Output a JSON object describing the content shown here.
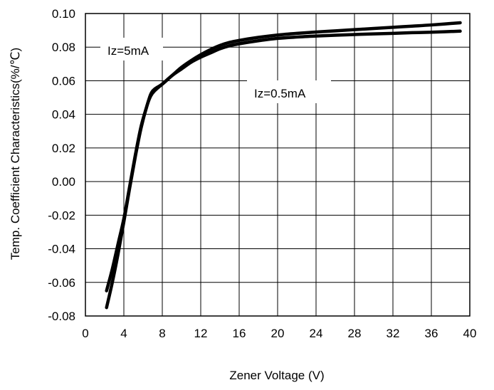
{
  "chart_data": {
    "type": "line",
    "title": "",
    "xlabel": "Zener Voltage (V)",
    "ylabel": "Temp. Coefficient Characteristics(%/℃)",
    "xlim": [
      0,
      40
    ],
    "ylim": [
      -0.08,
      0.1
    ],
    "xticks": [
      0,
      4,
      8,
      12,
      16,
      20,
      24,
      28,
      32,
      36,
      40
    ],
    "xtick_labels": [
      "0",
      "4",
      "8",
      "12",
      "16",
      "20",
      "24",
      "28",
      "32",
      "36",
      "40"
    ],
    "yticks": [
      0.1,
      0.08,
      0.06,
      0.04,
      0.02,
      0.0,
      -0.02,
      -0.04,
      -0.06,
      -0.08
    ],
    "ytick_labels": [
      "0.10",
      "0.08",
      "0.06",
      "0.04",
      "0.02",
      "0.00",
      "-0.02",
      "-0.04",
      "-0.06",
      "-0.08"
    ],
    "grid": true,
    "series": [
      {
        "name": "Iz=5mA",
        "x": [
          2.2,
          2.8,
          3.4,
          4.0,
          4.6,
          5.2,
          5.8,
          6.4,
          6.8,
          7.2,
          8.0,
          9.0,
          10.0,
          11.0,
          12.0,
          13.0,
          14.0,
          15.0,
          16.0,
          18.0,
          20.0,
          22.0,
          24.0,
          26.0,
          28.0,
          30.0,
          32.0,
          34.0,
          36.0,
          39.0
        ],
        "y": [
          -0.065,
          -0.052,
          -0.037,
          -0.022,
          -0.003,
          0.016,
          0.033,
          0.045,
          0.052,
          0.055,
          0.058,
          0.063,
          0.068,
          0.072,
          0.0755,
          0.0785,
          0.081,
          0.0828,
          0.084,
          0.0858,
          0.0872,
          0.0882,
          0.089,
          0.0897,
          0.0904,
          0.0911,
          0.0918,
          0.0925,
          0.0932,
          0.0945
        ]
      },
      {
        "name": "Iz=0.5mA",
        "x": [
          2.2,
          2.8,
          3.4,
          4.0,
          4.6,
          5.2,
          5.8,
          6.4,
          6.8,
          7.2,
          8.0,
          9.0,
          10.0,
          11.0,
          12.0,
          13.0,
          14.0,
          15.0,
          16.0,
          18.0,
          20.0,
          22.0,
          24.0,
          26.0,
          28.0,
          30.0,
          32.0,
          34.0,
          36.0,
          39.0
        ],
        "y": [
          -0.075,
          -0.06,
          -0.043,
          -0.024,
          -0.004,
          0.015,
          0.032,
          0.045,
          0.051,
          0.054,
          0.058,
          0.063,
          0.067,
          0.071,
          0.074,
          0.0765,
          0.079,
          0.0808,
          0.082,
          0.0838,
          0.0852,
          0.086,
          0.0866,
          0.0871,
          0.0875,
          0.0879,
          0.0882,
          0.0886,
          0.0889,
          0.0895
        ]
      }
    ],
    "annotations": [
      {
        "text": "Iz=5mA",
        "series": 0
      },
      {
        "text": "Iz=0.5mA",
        "series": 1
      }
    ],
    "line_color": "#000000"
  }
}
